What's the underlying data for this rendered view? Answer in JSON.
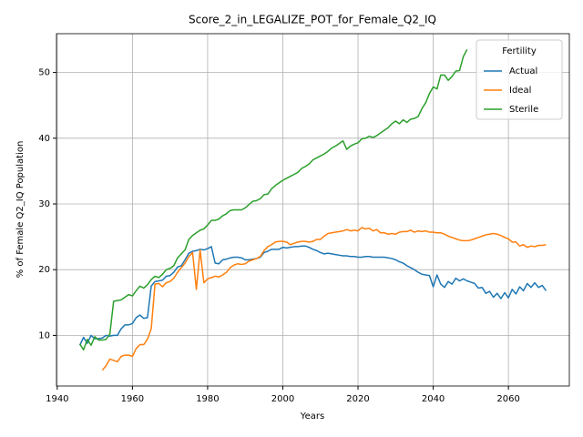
{
  "chart_data": {
    "type": "line",
    "title": "Score_2_in_LEGALIZE_POT_for_Female_Q2_IQ",
    "x_label": "Years",
    "y_label": "% of Female Q2_IQ Population",
    "x": [
      1946,
      1947,
      1948,
      1949,
      1950,
      1951,
      1952,
      1953,
      1954,
      1955,
      1956,
      1957,
      1958,
      1959,
      1960,
      1961,
      1962,
      1963,
      1964,
      1965,
      1966,
      1967,
      1968,
      1969,
      1970,
      1971,
      1972,
      1973,
      1974,
      1975,
      1976,
      1977,
      1978,
      1979,
      1980,
      1981,
      1982,
      1983,
      1984,
      1985,
      1986,
      1987,
      1988,
      1989,
      1990,
      1991,
      1992,
      1993,
      1994,
      1995,
      1996,
      1997,
      1998,
      1999,
      2000,
      2001,
      2002,
      2003,
      2004,
      2005,
      2006,
      2007,
      2008,
      2009,
      2010,
      2011,
      2012,
      2013,
      2014,
      2015,
      2016,
      2017,
      2018,
      2019,
      2020,
      2021,
      2022,
      2023,
      2024,
      2025,
      2026,
      2027,
      2028,
      2029,
      2030,
      2031,
      2032,
      2033,
      2034,
      2035,
      2036,
      2037,
      2038,
      2039,
      2040,
      2041,
      2042,
      2043,
      2044,
      2045,
      2046,
      2047,
      2048,
      2049,
      2050,
      2051,
      2052,
      2053,
      2054,
      2055,
      2056,
      2057,
      2058,
      2059,
      2060,
      2061,
      2062,
      2063,
      2064,
      2065,
      2066,
      2067,
      2068,
      2069,
      2070
    ],
    "series": [
      {
        "name": "Actual",
        "color": "#1f77b4",
        "values": [
          8.5,
          9.7,
          8.8,
          10.0,
          9.5,
          9.5,
          9.6,
          10.0,
          9.9,
          10.0,
          10.0,
          11.0,
          11.6,
          11.6,
          11.8,
          12.7,
          13.1,
          12.6,
          12.7,
          17.5,
          18.2,
          18.3,
          18.4,
          19.0,
          19.1,
          19.6,
          20.4,
          20.6,
          21.5,
          22.5,
          22.8,
          22.9,
          23.1,
          23.0,
          23.2,
          23.5,
          21.0,
          20.9,
          21.5,
          21.6,
          21.8,
          21.9,
          21.9,
          21.8,
          21.5,
          21.5,
          21.6,
          21.7,
          21.9,
          22.6,
          22.8,
          23.1,
          23.1,
          23.1,
          23.4,
          23.3,
          23.4,
          23.5,
          23.5,
          23.6,
          23.6,
          23.4,
          23.1,
          22.9,
          22.6,
          22.4,
          22.5,
          22.4,
          22.3,
          22.2,
          22.1,
          22.1,
          22.0,
          22.0,
          21.9,
          21.9,
          22.0,
          22.0,
          21.9,
          21.9,
          21.9,
          21.9,
          21.8,
          21.7,
          21.5,
          21.2,
          21.0,
          20.6,
          20.3,
          20.0,
          19.6,
          19.3,
          19.2,
          19.1,
          17.4,
          19.2,
          17.8,
          17.3,
          18.2,
          17.8,
          18.7,
          18.3,
          18.6,
          18.3,
          18.1,
          17.9,
          17.2,
          17.3,
          16.4,
          16.7,
          15.8,
          16.4,
          15.6,
          16.5,
          15.7,
          17.0,
          16.3,
          17.4,
          16.8,
          17.9,
          17.3,
          18.0,
          17.3,
          17.6,
          16.8
        ]
      },
      {
        "name": "Ideal",
        "color": "#ff7f0e",
        "values": [
          null,
          null,
          null,
          null,
          null,
          null,
          4.7,
          5.4,
          6.4,
          6.2,
          6.0,
          6.8,
          7.0,
          7.0,
          6.8,
          8.0,
          8.6,
          8.6,
          9.4,
          11.0,
          17.8,
          17.9,
          17.4,
          18.0,
          18.2,
          18.7,
          19.6,
          20.3,
          21.0,
          22.0,
          22.6,
          17.0,
          23.0,
          18.0,
          18.6,
          18.8,
          19.0,
          18.9,
          19.2,
          19.6,
          20.3,
          20.7,
          20.9,
          20.8,
          20.9,
          21.3,
          21.5,
          21.7,
          22.0,
          22.9,
          23.5,
          23.8,
          24.2,
          24.3,
          24.3,
          24.2,
          23.8,
          24.0,
          24.2,
          24.3,
          24.3,
          24.2,
          24.3,
          24.6,
          24.6,
          25.1,
          25.5,
          25.6,
          25.7,
          25.8,
          25.9,
          26.1,
          25.9,
          26.0,
          25.9,
          26.4,
          26.2,
          26.3,
          25.9,
          26.1,
          25.6,
          25.6,
          25.4,
          25.5,
          25.4,
          25.7,
          25.8,
          25.8,
          26.0,
          25.7,
          25.9,
          25.8,
          25.9,
          25.7,
          25.7,
          25.6,
          25.6,
          25.4,
          25.1,
          24.9,
          24.7,
          24.5,
          24.4,
          24.4,
          24.5,
          24.7,
          24.9,
          25.1,
          25.3,
          25.4,
          25.5,
          25.4,
          25.2,
          24.9,
          24.7,
          24.2,
          24.2,
          23.6,
          23.8,
          23.4,
          23.6,
          23.5,
          23.7,
          23.7,
          23.8
        ]
      },
      {
        "name": "Sterile",
        "color": "#2ca02c",
        "values": [
          8.7,
          7.8,
          9.4,
          8.5,
          9.8,
          9.3,
          9.3,
          9.4,
          10.2,
          15.2,
          15.3,
          15.4,
          15.8,
          16.2,
          16.0,
          16.8,
          17.5,
          17.2,
          17.7,
          18.5,
          19.0,
          18.8,
          19.3,
          20.0,
          20.2,
          20.6,
          21.8,
          22.4,
          23.0,
          24.6,
          25.2,
          25.6,
          26.0,
          26.2,
          26.8,
          27.5,
          27.5,
          27.7,
          28.2,
          28.5,
          29.0,
          29.1,
          29.1,
          29.1,
          29.4,
          29.9,
          30.4,
          30.5,
          30.8,
          31.4,
          31.5,
          32.3,
          32.8,
          33.2,
          33.6,
          33.9,
          34.2,
          34.5,
          34.8,
          35.4,
          35.7,
          36.1,
          36.7,
          37.0,
          37.3,
          37.6,
          38.0,
          38.5,
          38.8,
          39.2,
          39.6,
          38.3,
          38.8,
          39.1,
          39.3,
          39.9,
          40.0,
          40.3,
          40.1,
          40.4,
          40.8,
          41.2,
          41.6,
          42.2,
          42.6,
          42.2,
          42.8,
          42.4,
          42.9,
          43.0,
          43.3,
          44.5,
          45.4,
          46.8,
          47.8,
          47.5,
          49.6,
          49.6,
          48.8,
          49.4,
          50.2,
          50.3,
          52.4,
          53.5,
          null,
          null,
          null,
          null,
          null,
          null,
          null,
          null,
          null,
          null,
          null,
          null,
          null,
          null,
          null,
          null,
          null,
          null,
          null,
          null,
          null
        ]
      }
    ],
    "xlim": [
      1939.8,
      2076.2
    ],
    "xticks": [
      1940,
      1960,
      1980,
      2000,
      2020,
      2040,
      2060
    ],
    "ylim": [
      2.3,
      55.9
    ],
    "yticks": [
      10,
      20,
      30,
      40,
      50
    ],
    "grid": true,
    "legend_title": "Fertility",
    "legend_position": "upper right"
  }
}
